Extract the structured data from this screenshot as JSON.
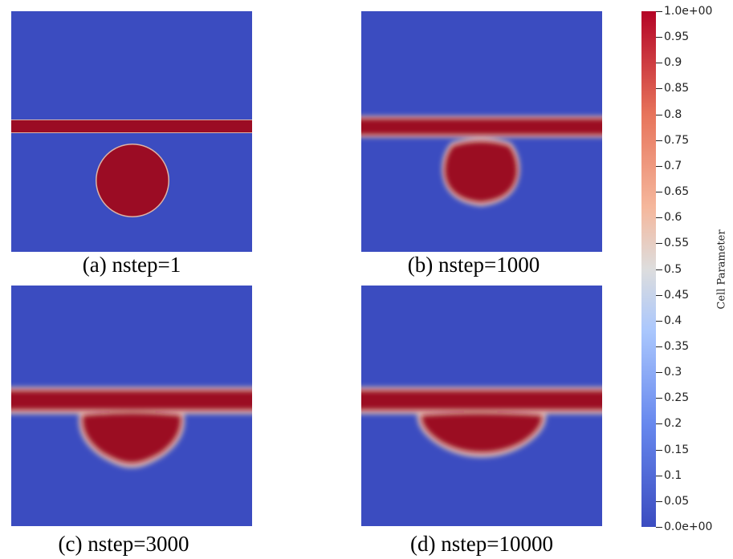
{
  "panels": [
    {
      "id": "a",
      "caption": "(a) nstep=1"
    },
    {
      "id": "b",
      "caption": "(b) nstep=1000"
    },
    {
      "id": "c",
      "caption": "(c) nstep=3000"
    },
    {
      "id": "d",
      "caption": "(d) nstep=10000"
    }
  ],
  "colorbar": {
    "title": "Cell Parameter",
    "range": [
      0,
      1
    ],
    "colormap": "coolwarm",
    "low_color": "#3b4cc0",
    "mid_color": "#dddddd",
    "high_color": "#b40426",
    "ticks": [
      {
        "value": 1.0,
        "label": "1.0e+00"
      },
      {
        "value": 0.95,
        "label": "0.95"
      },
      {
        "value": 0.9,
        "label": "0.9"
      },
      {
        "value": 0.85,
        "label": "0.85"
      },
      {
        "value": 0.8,
        "label": "0.8"
      },
      {
        "value": 0.75,
        "label": "0.75"
      },
      {
        "value": 0.7,
        "label": "0.7"
      },
      {
        "value": 0.65,
        "label": "0.65"
      },
      {
        "value": 0.6,
        "label": "0.6"
      },
      {
        "value": 0.55,
        "label": "0.55"
      },
      {
        "value": 0.5,
        "label": "0.5"
      },
      {
        "value": 0.45,
        "label": "0.45"
      },
      {
        "value": 0.4,
        "label": "0.4"
      },
      {
        "value": 0.35,
        "label": "0.35"
      },
      {
        "value": 0.3,
        "label": "0.3"
      },
      {
        "value": 0.25,
        "label": "0.25"
      },
      {
        "value": 0.2,
        "label": "0.2"
      },
      {
        "value": 0.15,
        "label": "0.15"
      },
      {
        "value": 0.1,
        "label": "0.1"
      },
      {
        "value": 0.05,
        "label": "0.05"
      },
      {
        "value": 0.0,
        "label": "0.0e+00"
      }
    ]
  }
}
